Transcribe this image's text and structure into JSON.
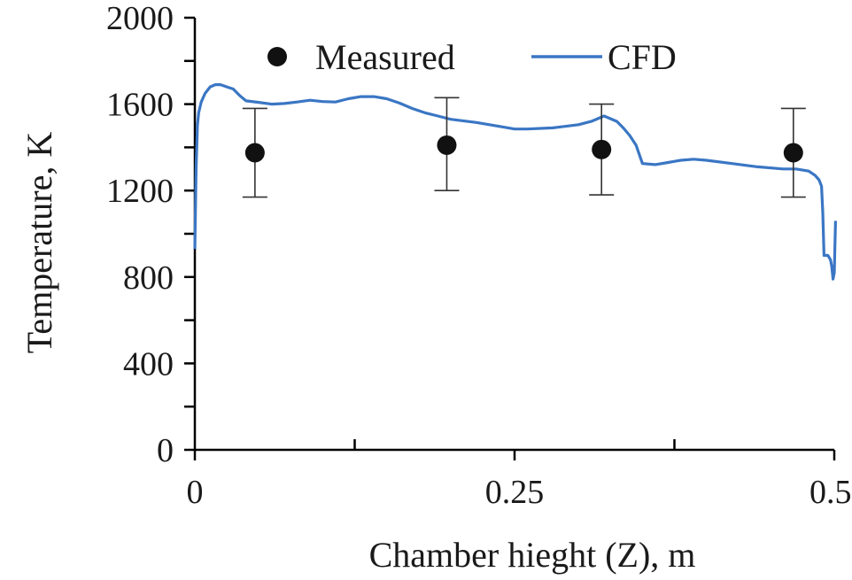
{
  "chart_data": {
    "type": "scatter+line",
    "xlabel": "Chamber hieght (Z), m",
    "ylabel": "Temperature, K",
    "xlim": [
      0,
      0.5
    ],
    "ylim": [
      0,
      2000
    ],
    "x_ticks": [
      0,
      0.25,
      0.5
    ],
    "x_tick_labels": [
      "0",
      "0.25",
      "0.5"
    ],
    "x_minor_ticks": [
      0.125,
      0.375
    ],
    "y_ticks": [
      0,
      400,
      800,
      1200,
      1600,
      2000
    ],
    "y_tick_labels": [
      "0",
      "400",
      "800",
      "1200",
      "1600",
      "2000"
    ],
    "y_minor_ticks": [
      200,
      600,
      1000,
      1400,
      1800
    ],
    "grid": false,
    "legend": {
      "placement": "top",
      "entries": [
        "Measured",
        "CFD"
      ]
    },
    "series": [
      {
        "name": "Measured",
        "kind": "scatter",
        "color": "#111111",
        "points": [
          {
            "x": 0.047,
            "y": 1375,
            "err_low": 1170,
            "err_high": 1580
          },
          {
            "x": 0.197,
            "y": 1410,
            "err_low": 1200,
            "err_high": 1630
          },
          {
            "x": 0.318,
            "y": 1390,
            "err_low": 1180,
            "err_high": 1600
          },
          {
            "x": 0.468,
            "y": 1375,
            "err_low": 1170,
            "err_high": 1580
          }
        ]
      },
      {
        "name": "CFD",
        "kind": "line",
        "color": "#3a76c4",
        "x": [
          0,
          0.001,
          0.002,
          0.003,
          0.005,
          0.008,
          0.012,
          0.016,
          0.02,
          0.025,
          0.03,
          0.035,
          0.04,
          0.05,
          0.06,
          0.07,
          0.08,
          0.09,
          0.1,
          0.11,
          0.12,
          0.13,
          0.14,
          0.15,
          0.16,
          0.17,
          0.18,
          0.19,
          0.2,
          0.22,
          0.24,
          0.25,
          0.26,
          0.28,
          0.3,
          0.31,
          0.32,
          0.33,
          0.335,
          0.34,
          0.345,
          0.35,
          0.36,
          0.37,
          0.38,
          0.39,
          0.4,
          0.42,
          0.44,
          0.46,
          0.47,
          0.48,
          0.485,
          0.488,
          0.49,
          0.491,
          0.492,
          0.495,
          0.497,
          0.498,
          0.499,
          0.5,
          0.501
        ],
        "y": [
          930,
          1300,
          1500,
          1560,
          1610,
          1650,
          1680,
          1690,
          1690,
          1680,
          1670,
          1640,
          1615,
          1608,
          1600,
          1603,
          1610,
          1618,
          1612,
          1610,
          1625,
          1635,
          1635,
          1625,
          1605,
          1580,
          1560,
          1545,
          1530,
          1515,
          1495,
          1485,
          1485,
          1490,
          1505,
          1520,
          1545,
          1520,
          1490,
          1455,
          1410,
          1325,
          1320,
          1330,
          1340,
          1345,
          1340,
          1325,
          1310,
          1300,
          1300,
          1290,
          1270,
          1250,
          1220,
          1100,
          900,
          900,
          880,
          850,
          790,
          820,
          1060
        ]
      }
    ]
  }
}
